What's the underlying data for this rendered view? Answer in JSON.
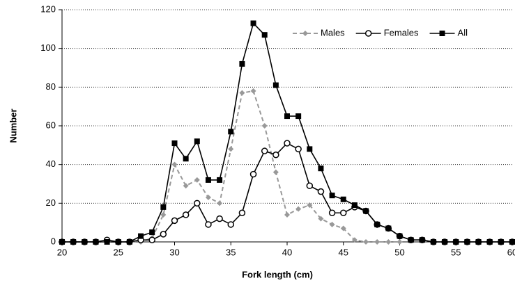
{
  "chart_data": {
    "type": "line",
    "x": [
      20,
      21,
      22,
      23,
      24,
      25,
      26,
      27,
      28,
      29,
      30,
      31,
      32,
      33,
      34,
      35,
      36,
      37,
      38,
      39,
      40,
      41,
      42,
      43,
      44,
      45,
      46,
      47,
      48,
      49,
      50,
      51,
      52,
      53,
      54,
      55,
      56,
      57,
      58,
      59,
      60
    ],
    "xlabel": "Fork length (cm)",
    "ylabel": "Number",
    "xlim": [
      20,
      60
    ],
    "xticks": [
      20,
      25,
      30,
      35,
      40,
      45,
      50,
      55,
      60
    ],
    "ylim": [
      0,
      120
    ],
    "yticks": [
      0,
      20,
      40,
      60,
      80,
      100,
      120
    ],
    "grid": true,
    "legend": "top-right",
    "series": [
      {
        "name": "Males",
        "color": "#999999",
        "marker": "diamond",
        "dash": true,
        "values": [
          0,
          0,
          0,
          0,
          0,
          0,
          0,
          0,
          2,
          14,
          40,
          29,
          32,
          23,
          20,
          48,
          77,
          78,
          60,
          36,
          14,
          17,
          19,
          12,
          9,
          7,
          1,
          0,
          0,
          0,
          0,
          null,
          null,
          null,
          null,
          null,
          null,
          null,
          null,
          null,
          null
        ]
      },
      {
        "name": "Females",
        "color": "#000000",
        "marker": "circle",
        "dash": false,
        "values": [
          0,
          0,
          0,
          0,
          1,
          0,
          0,
          1,
          1,
          4,
          11,
          14,
          20,
          9,
          12,
          9,
          15,
          35,
          47,
          45,
          51,
          48,
          29,
          26,
          15,
          15,
          18,
          16,
          9,
          7,
          3,
          1,
          1,
          0,
          0,
          0,
          0,
          0,
          0,
          0,
          0
        ]
      },
      {
        "name": "All",
        "color": "#000000",
        "marker": "square",
        "dash": false,
        "values": [
          0,
          0,
          0,
          0,
          0,
          0,
          0,
          3,
          5,
          18,
          51,
          43,
          52,
          32,
          32,
          57,
          92,
          113,
          107,
          81,
          65,
          65,
          48,
          38,
          24,
          22,
          19,
          16,
          9,
          7,
          3,
          1,
          1,
          0,
          0,
          0,
          0,
          0,
          0,
          0,
          0
        ]
      }
    ]
  }
}
